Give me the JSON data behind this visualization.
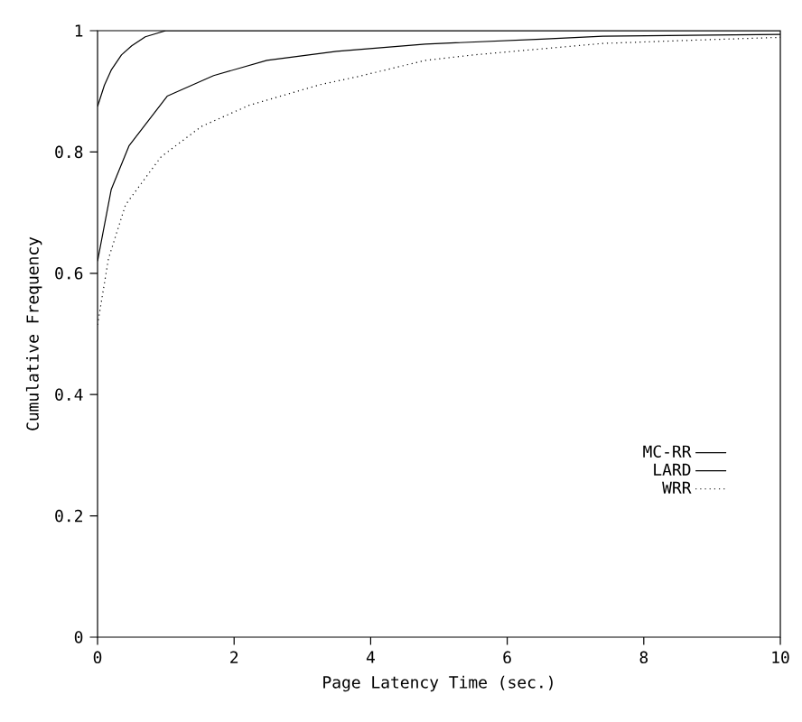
{
  "chart_data": {
    "type": "line",
    "xlabel": "Page Latency Time (sec.)",
    "ylabel": "Cumulative Frequency",
    "xlim": [
      0,
      10
    ],
    "ylim": [
      0,
      1
    ],
    "xticks": [
      0,
      2,
      4,
      6,
      8,
      10
    ],
    "yticks": [
      0,
      0.2,
      0.4,
      0.6,
      0.8,
      1
    ],
    "legend": "bottom right",
    "marker": "none",
    "series": [
      {
        "name": "MC-RR",
        "color": "#000000",
        "line_style": "solid",
        "x": [
          0,
          0.1,
          0.2,
          0.35,
          0.5,
          0.7,
          1,
          10
        ],
        "values": [
          0.875,
          0.91,
          0.935,
          0.96,
          0.975,
          0.99,
          1,
          1
        ]
      },
      {
        "name": "LARD",
        "color": "#000000",
        "line_style": "solid",
        "x": [
          0,
          0.2,
          0.46,
          1.02,
          1.7,
          2.48,
          3.5,
          4.8,
          6.5,
          7.4,
          10
        ],
        "values": [
          0.62,
          0.738,
          0.81,
          0.892,
          0.926,
          0.951,
          0.966,
          0.978,
          0.986,
          0.991,
          0.994
        ]
      },
      {
        "name": "WRR",
        "color": "#000000",
        "line_style": "dotted",
        "x": [
          0,
          0.16,
          0.41,
          0.93,
          1.52,
          2.22,
          3.26,
          3.8,
          4.8,
          5.5,
          7.4,
          8.9,
          10
        ],
        "values": [
          0.515,
          0.624,
          0.713,
          0.792,
          0.842,
          0.877,
          0.911,
          0.924,
          0.951,
          0.96,
          0.979,
          0.985,
          0.989
        ]
      }
    ]
  }
}
